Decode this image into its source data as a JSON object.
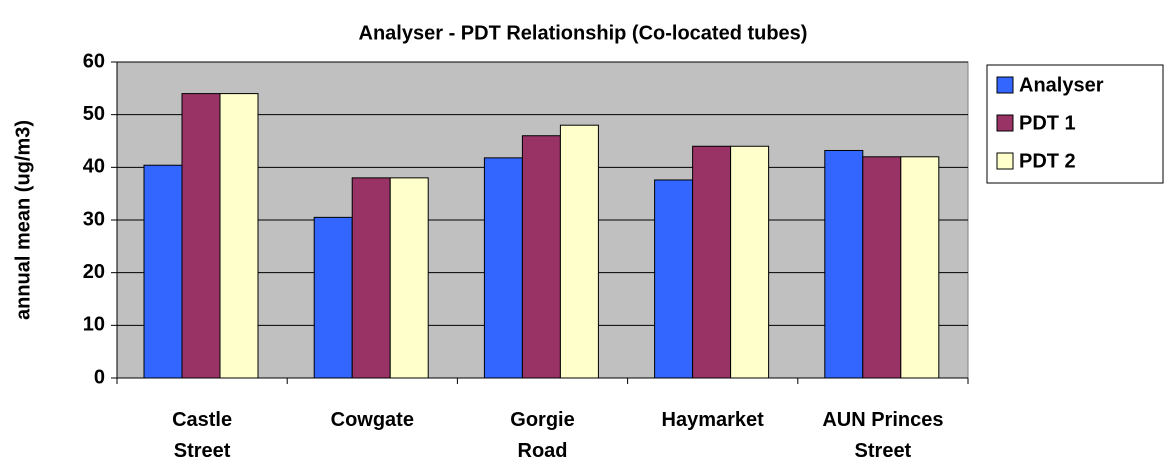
{
  "chart_data": {
    "type": "bar",
    "title": "Analyser - PDT Relationship (Co-located tubes)",
    "y_label": "annual mean (ug/m3)",
    "categories": [
      "Castle\nStreet",
      "Cowgate",
      "Gorgie\nRoad",
      "Haymarket",
      "AUN Princes\nStreet"
    ],
    "series": [
      {
        "name": "Analyser",
        "color": "#3366ff",
        "values": [
          40.4,
          30.5,
          41.8,
          37.6,
          43.2
        ]
      },
      {
        "name": "PDT 1",
        "color": "#993366",
        "values": [
          54,
          38,
          46,
          44,
          42
        ]
      },
      {
        "name": "PDT 2",
        "color": "#ffffcc",
        "values": [
          54,
          38,
          48,
          44,
          42
        ]
      }
    ],
    "ylim": [
      0,
      60
    ],
    "yticks": [
      0,
      10,
      20,
      30,
      40,
      50,
      60
    ],
    "grid": true,
    "legend": "right"
  }
}
